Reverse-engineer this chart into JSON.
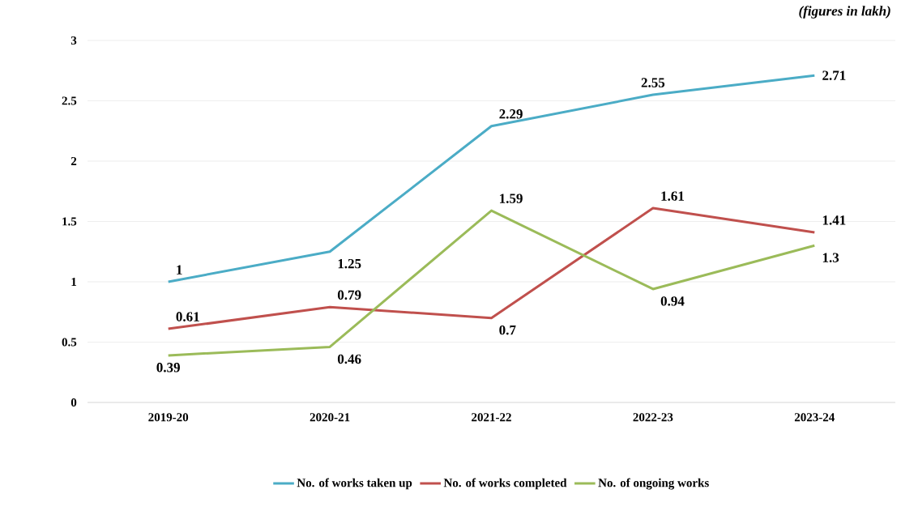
{
  "chart_data": {
    "type": "line",
    "annotations": [
      "(figures in lakh)"
    ],
    "categories": [
      "2019-20",
      "2020-21",
      "2021-22",
      "2022-23",
      "2023-24"
    ],
    "series": [
      {
        "name": "No. of works taken up",
        "color": "#4bacc6",
        "values": [
          1,
          1.25,
          2.29,
          2.55,
          2.71
        ]
      },
      {
        "name": "No. of works completed",
        "color": "#c0504d",
        "values": [
          0.61,
          0.79,
          0.7,
          1.61,
          1.41
        ]
      },
      {
        "name": "No. of ongoing works",
        "color": "#9bbb59",
        "values": [
          0.39,
          0.46,
          1.59,
          0.94,
          1.3
        ]
      }
    ],
    "ylim": [
      0,
      3
    ],
    "yticks": [
      0,
      0.5,
      1,
      1.5,
      2,
      2.5,
      3
    ],
    "grid": "y",
    "legend": "bottom",
    "data_labels": true,
    "marker": "none",
    "line_style": "solid"
  }
}
